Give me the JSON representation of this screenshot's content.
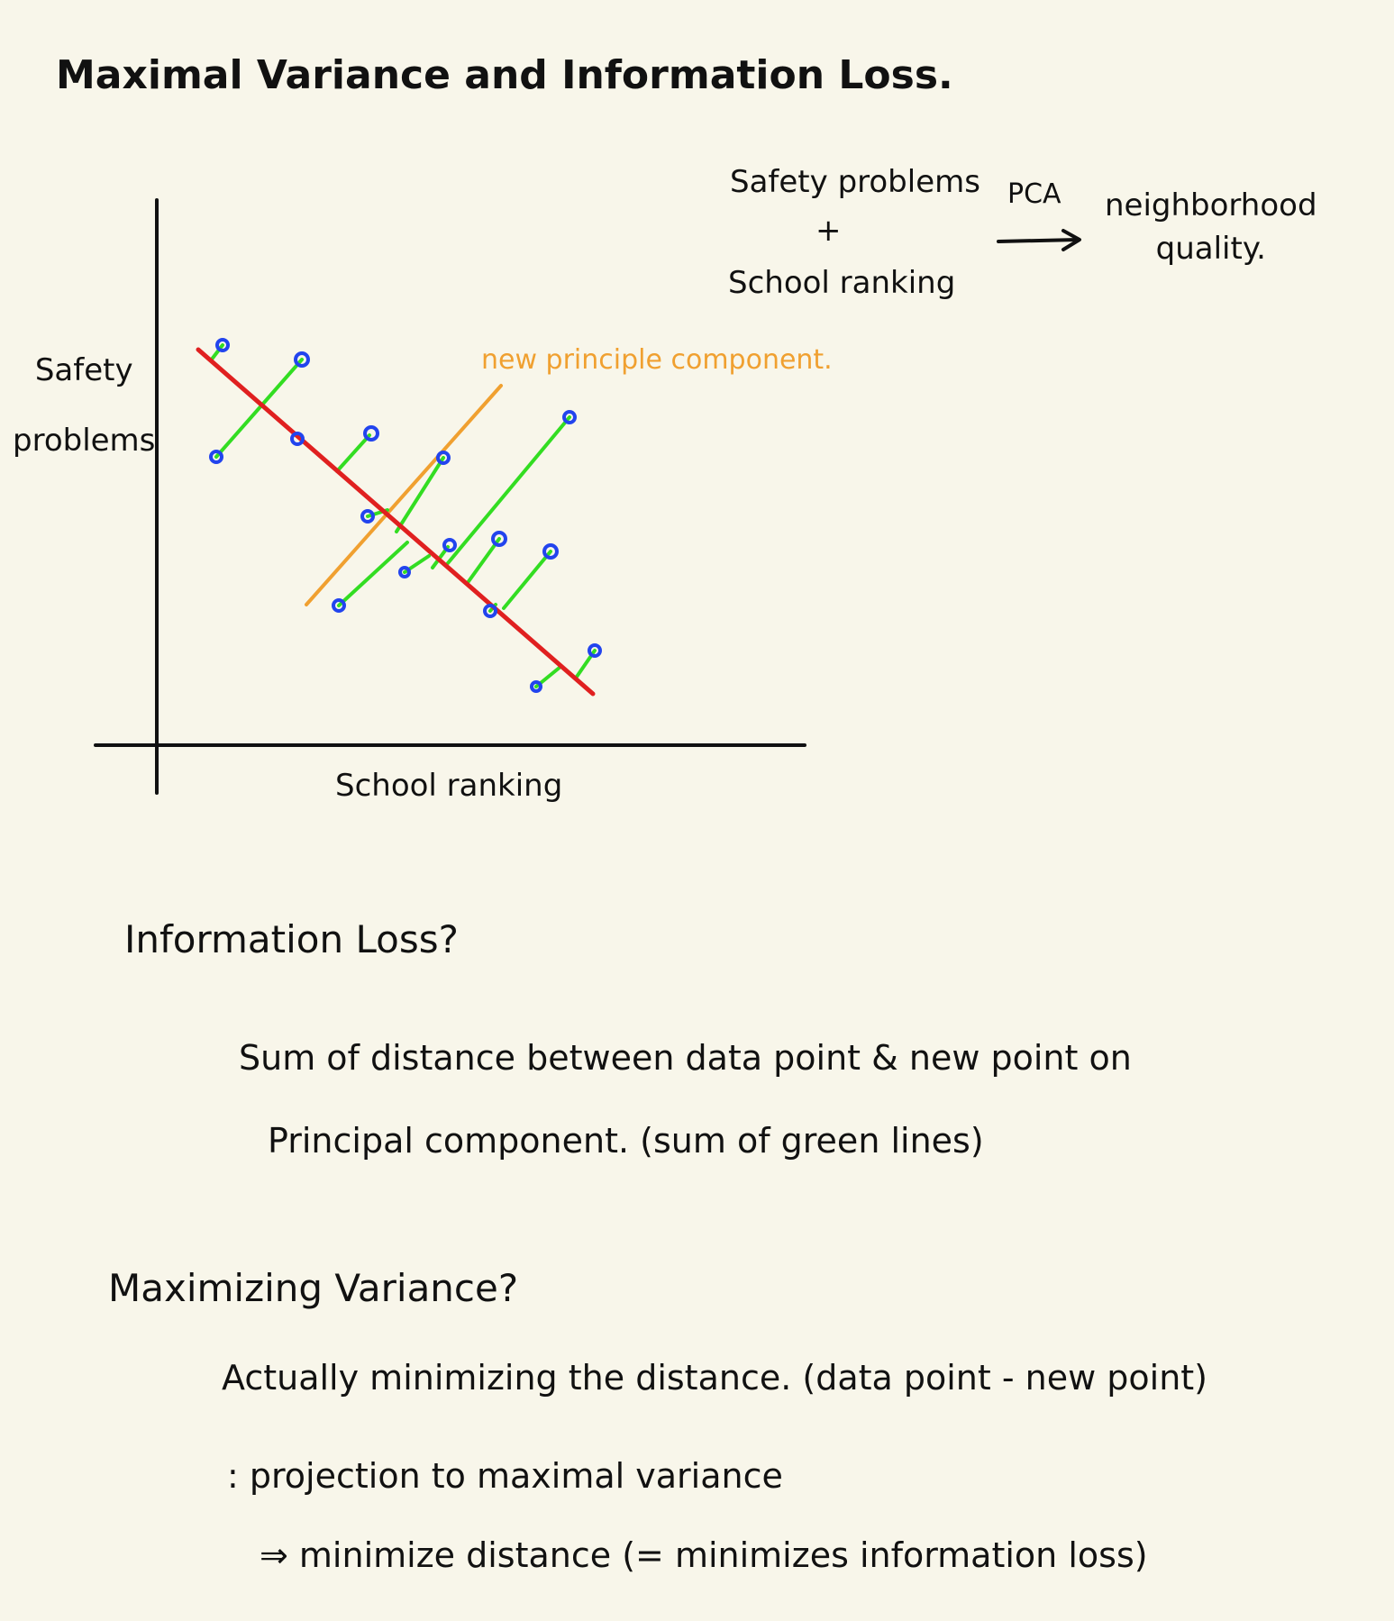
{
  "title": "Maximal Variance and Information Loss.",
  "pca_note": {
    "input_1": "Safety problems",
    "plus": "+",
    "input_2": "School ranking",
    "method": "PCA",
    "output_line1": "neighborhood",
    "output_line2": "quality."
  },
  "diagram": {
    "y_label_line1": "Safety",
    "y_label_line2": "problems",
    "x_label": "School ranking",
    "component_label": "new principle component.",
    "colors": {
      "axes": "#111111",
      "fit_line": "#e02020",
      "component_line": "#f0a030",
      "distance_lines": "#33dd22",
      "points": "#2244ee"
    }
  },
  "information_loss": {
    "question": "Information Loss?",
    "answer_line1": "Sum of distance between data point & new point on",
    "answer_line2": "Principal component. (sum of green lines)"
  },
  "maximizing_variance": {
    "question": "Maximizing Variance?",
    "answer_line1": "Actually minimizing the distance. (data point - new point)",
    "answer_line2": ": projection to maximal variance",
    "answer_line3": "⇒ minimize distance (= minimizes information loss)"
  }
}
